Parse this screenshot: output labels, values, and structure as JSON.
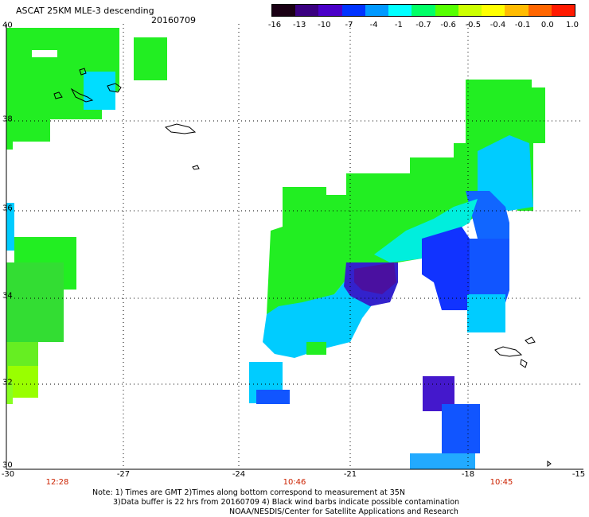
{
  "header": {
    "title": "ASCAT 25KM MLE-3 descending",
    "date": "20160709"
  },
  "colorbar": {
    "labels": [
      "-16",
      "-13",
      "-10",
      "-7",
      "-4",
      "-1",
      "-0.7",
      "-0.6",
      "-0.5",
      "-0.4",
      "-0.1",
      "0.0",
      "1.0"
    ],
    "colors": [
      "#1a0014",
      "#3a0080",
      "#4a00c8",
      "#0033ff",
      "#0099ff",
      "#00ffff",
      "#00ff66",
      "#55ff00",
      "#ccff00",
      "#ffff00",
      "#ffbb00",
      "#ff6600",
      "#ff1a00"
    ]
  },
  "axes": {
    "x_labels": [
      "-30",
      "-27",
      "-24",
      "-21",
      "-18",
      "-15"
    ],
    "y_labels": [
      "40",
      "38",
      "36",
      "34",
      "32",
      "30"
    ]
  },
  "times": [
    "12:28",
    "10:46",
    "10:45"
  ],
  "notes": {
    "line1": "Note: 1) Times are GMT 2)Times along bottom correspond to measurement at 35N",
    "line2": "3)Data buffer is 22 hrs from 20160709 4) Black wind barbs indicate possible contamination",
    "line3": "NOAA/NESDIS/Center for Satellite Applications and Research"
  },
  "colors": {
    "green": "#22ee22",
    "cyan": "#00ddff",
    "blue": "#0044ff",
    "purple": "#4a10b0",
    "yellow_green": "#99ff00",
    "time_red": "#cc2200"
  }
}
